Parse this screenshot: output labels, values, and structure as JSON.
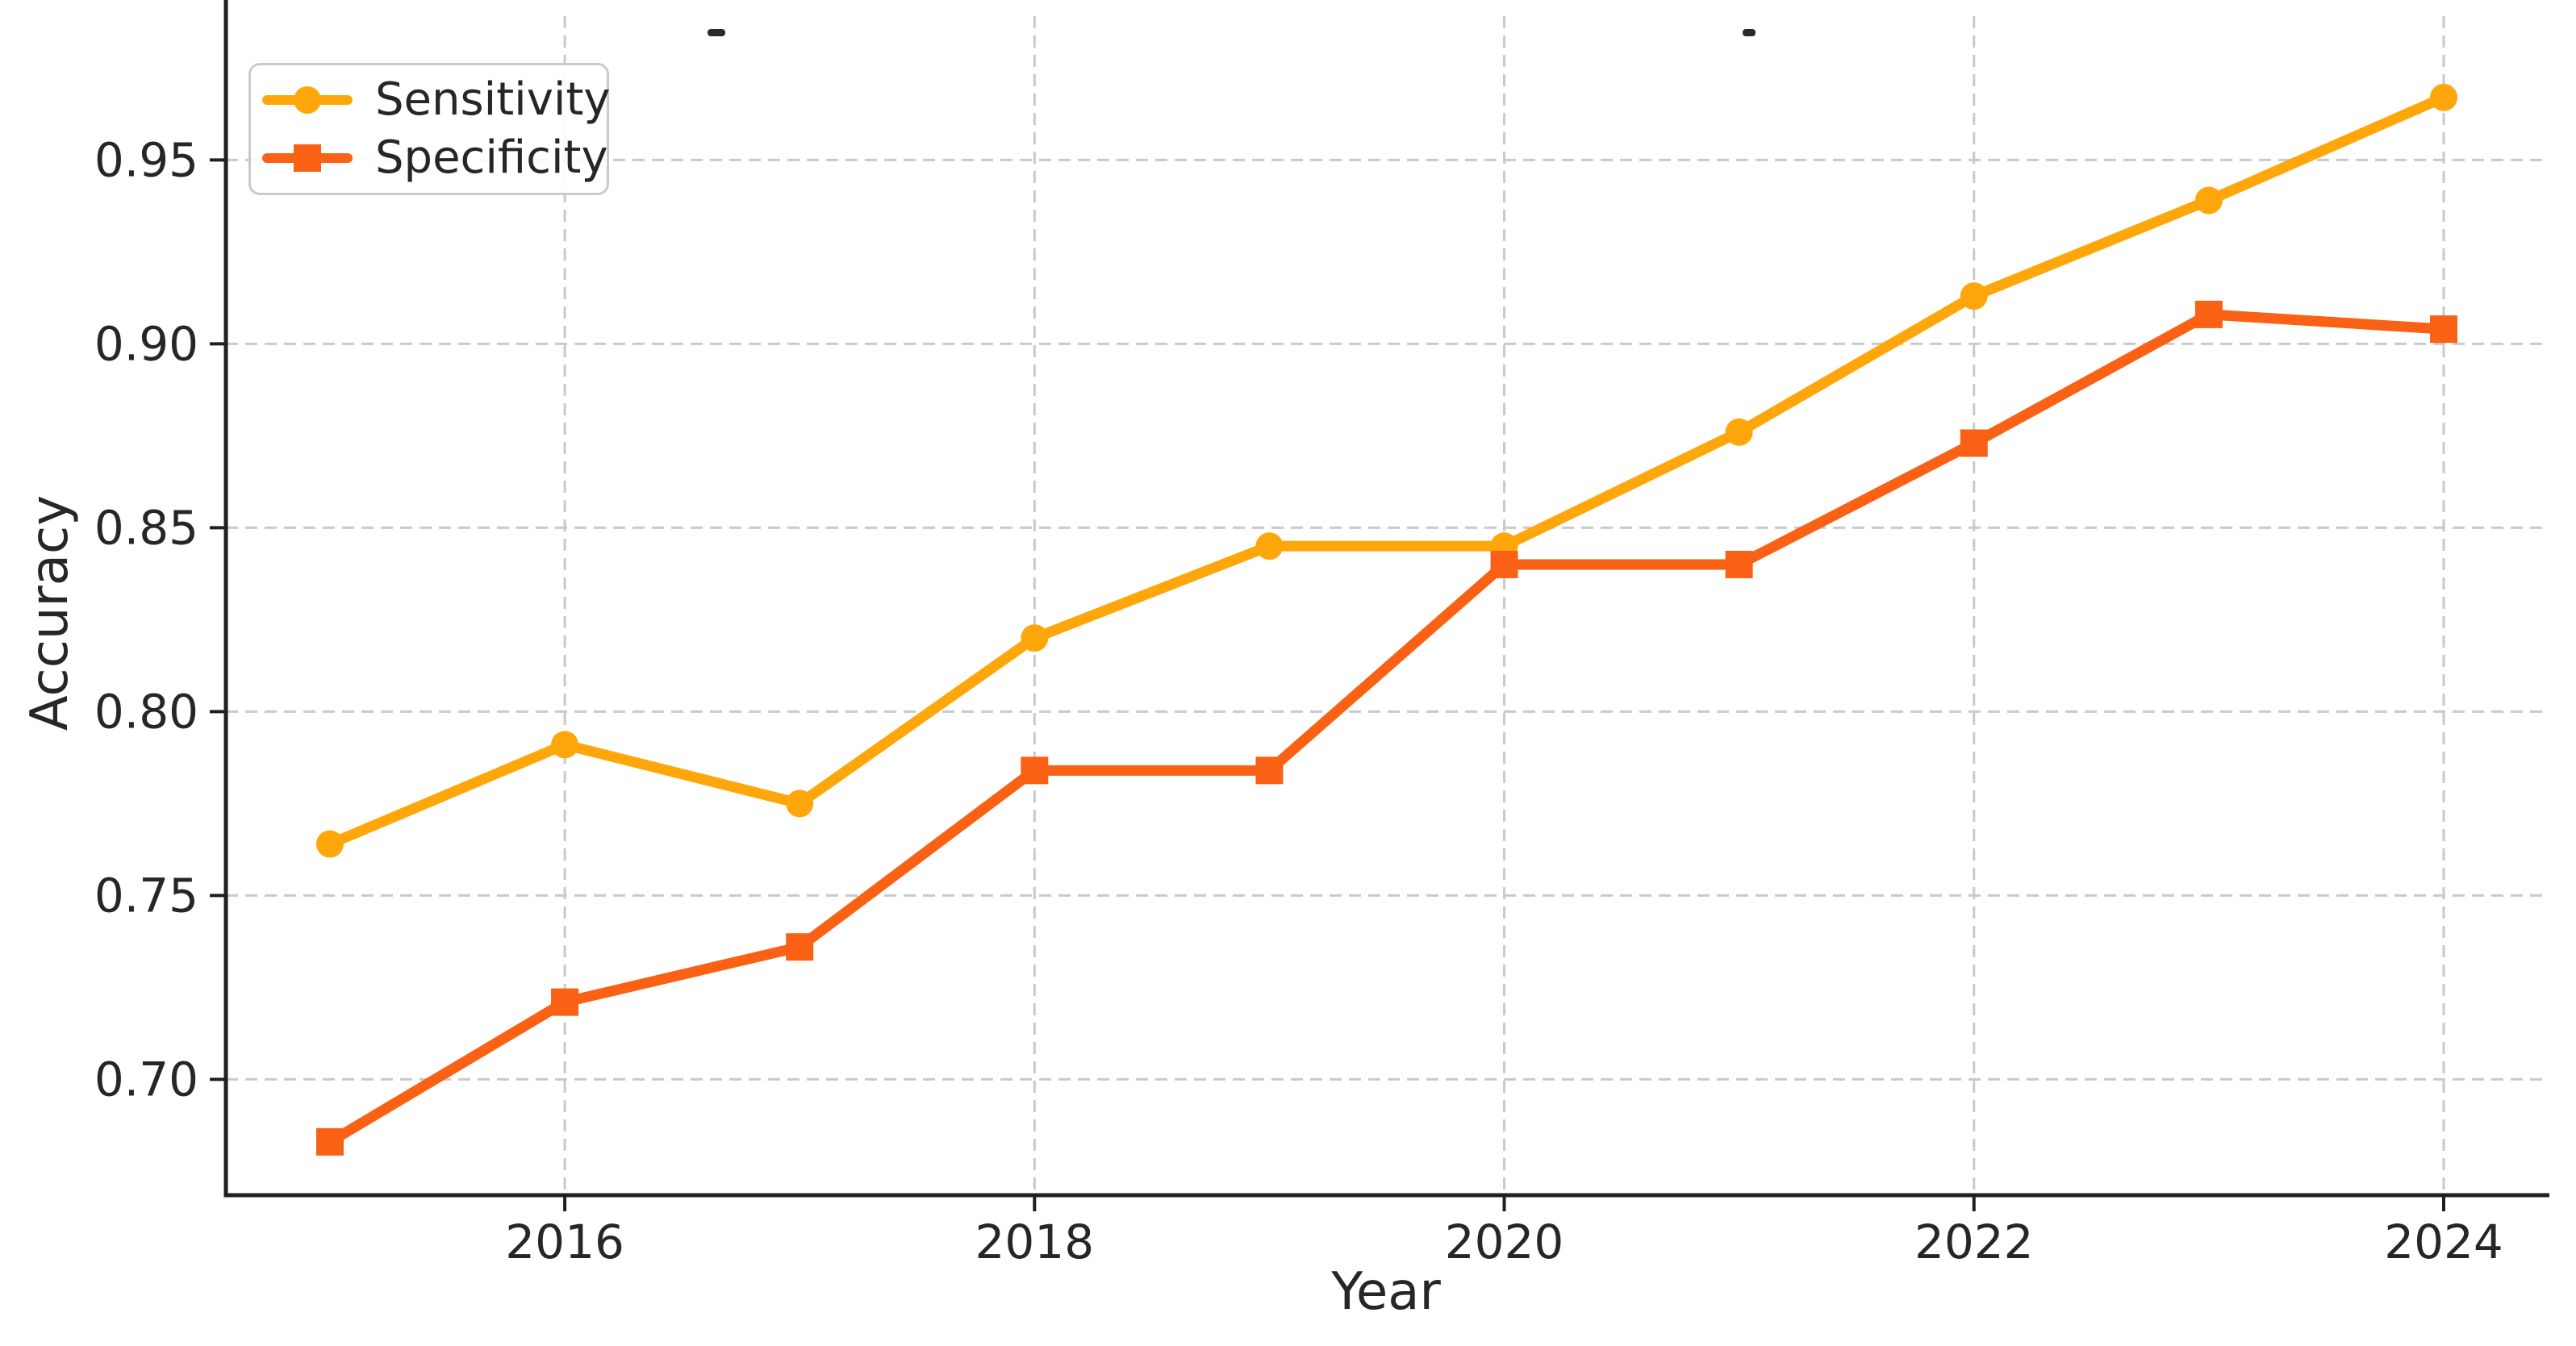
{
  "chart_data": {
    "type": "line",
    "title": "",
    "xlabel": "Year",
    "ylabel": "Accuracy",
    "x": [
      2015,
      2016,
      2017,
      2018,
      2019,
      2020,
      2021,
      2022,
      2023,
      2024
    ],
    "series": [
      {
        "name": "Sensitivity",
        "marker": "circle",
        "color": "#FFA70A",
        "values": [
          0.764,
          0.791,
          0.775,
          0.82,
          0.845,
          0.845,
          0.876,
          0.913,
          0.939,
          0.967
        ]
      },
      {
        "name": "Specificity",
        "marker": "square",
        "color": "#FA6114",
        "values": [
          0.683,
          0.721,
          0.736,
          0.784,
          0.784,
          0.84,
          0.84,
          0.873,
          0.908,
          0.904
        ]
      }
    ],
    "xticks": [
      2016,
      2018,
      2020,
      2022,
      2024
    ],
    "xtick_labels": [
      "2016",
      "2018",
      "2020",
      "2022",
      "2024"
    ],
    "yticks": [
      0.7,
      0.75,
      0.8,
      0.85,
      0.9,
      0.95
    ],
    "ytick_labels": [
      "0.70",
      "0.75",
      "0.80",
      "0.85",
      "0.90",
      "0.95"
    ],
    "xlim": [
      2014.557,
      2024.45
    ],
    "ylim": [
      0.6685,
      0.9935
    ],
    "grid": true,
    "grid_style": "dashed",
    "legend_position": "upper-left"
  },
  "style": {
    "grid_color": "#c9c9c9",
    "spine_color": "#1f1f1f",
    "tick_text_color": "#262626",
    "background": "#ffffff"
  }
}
